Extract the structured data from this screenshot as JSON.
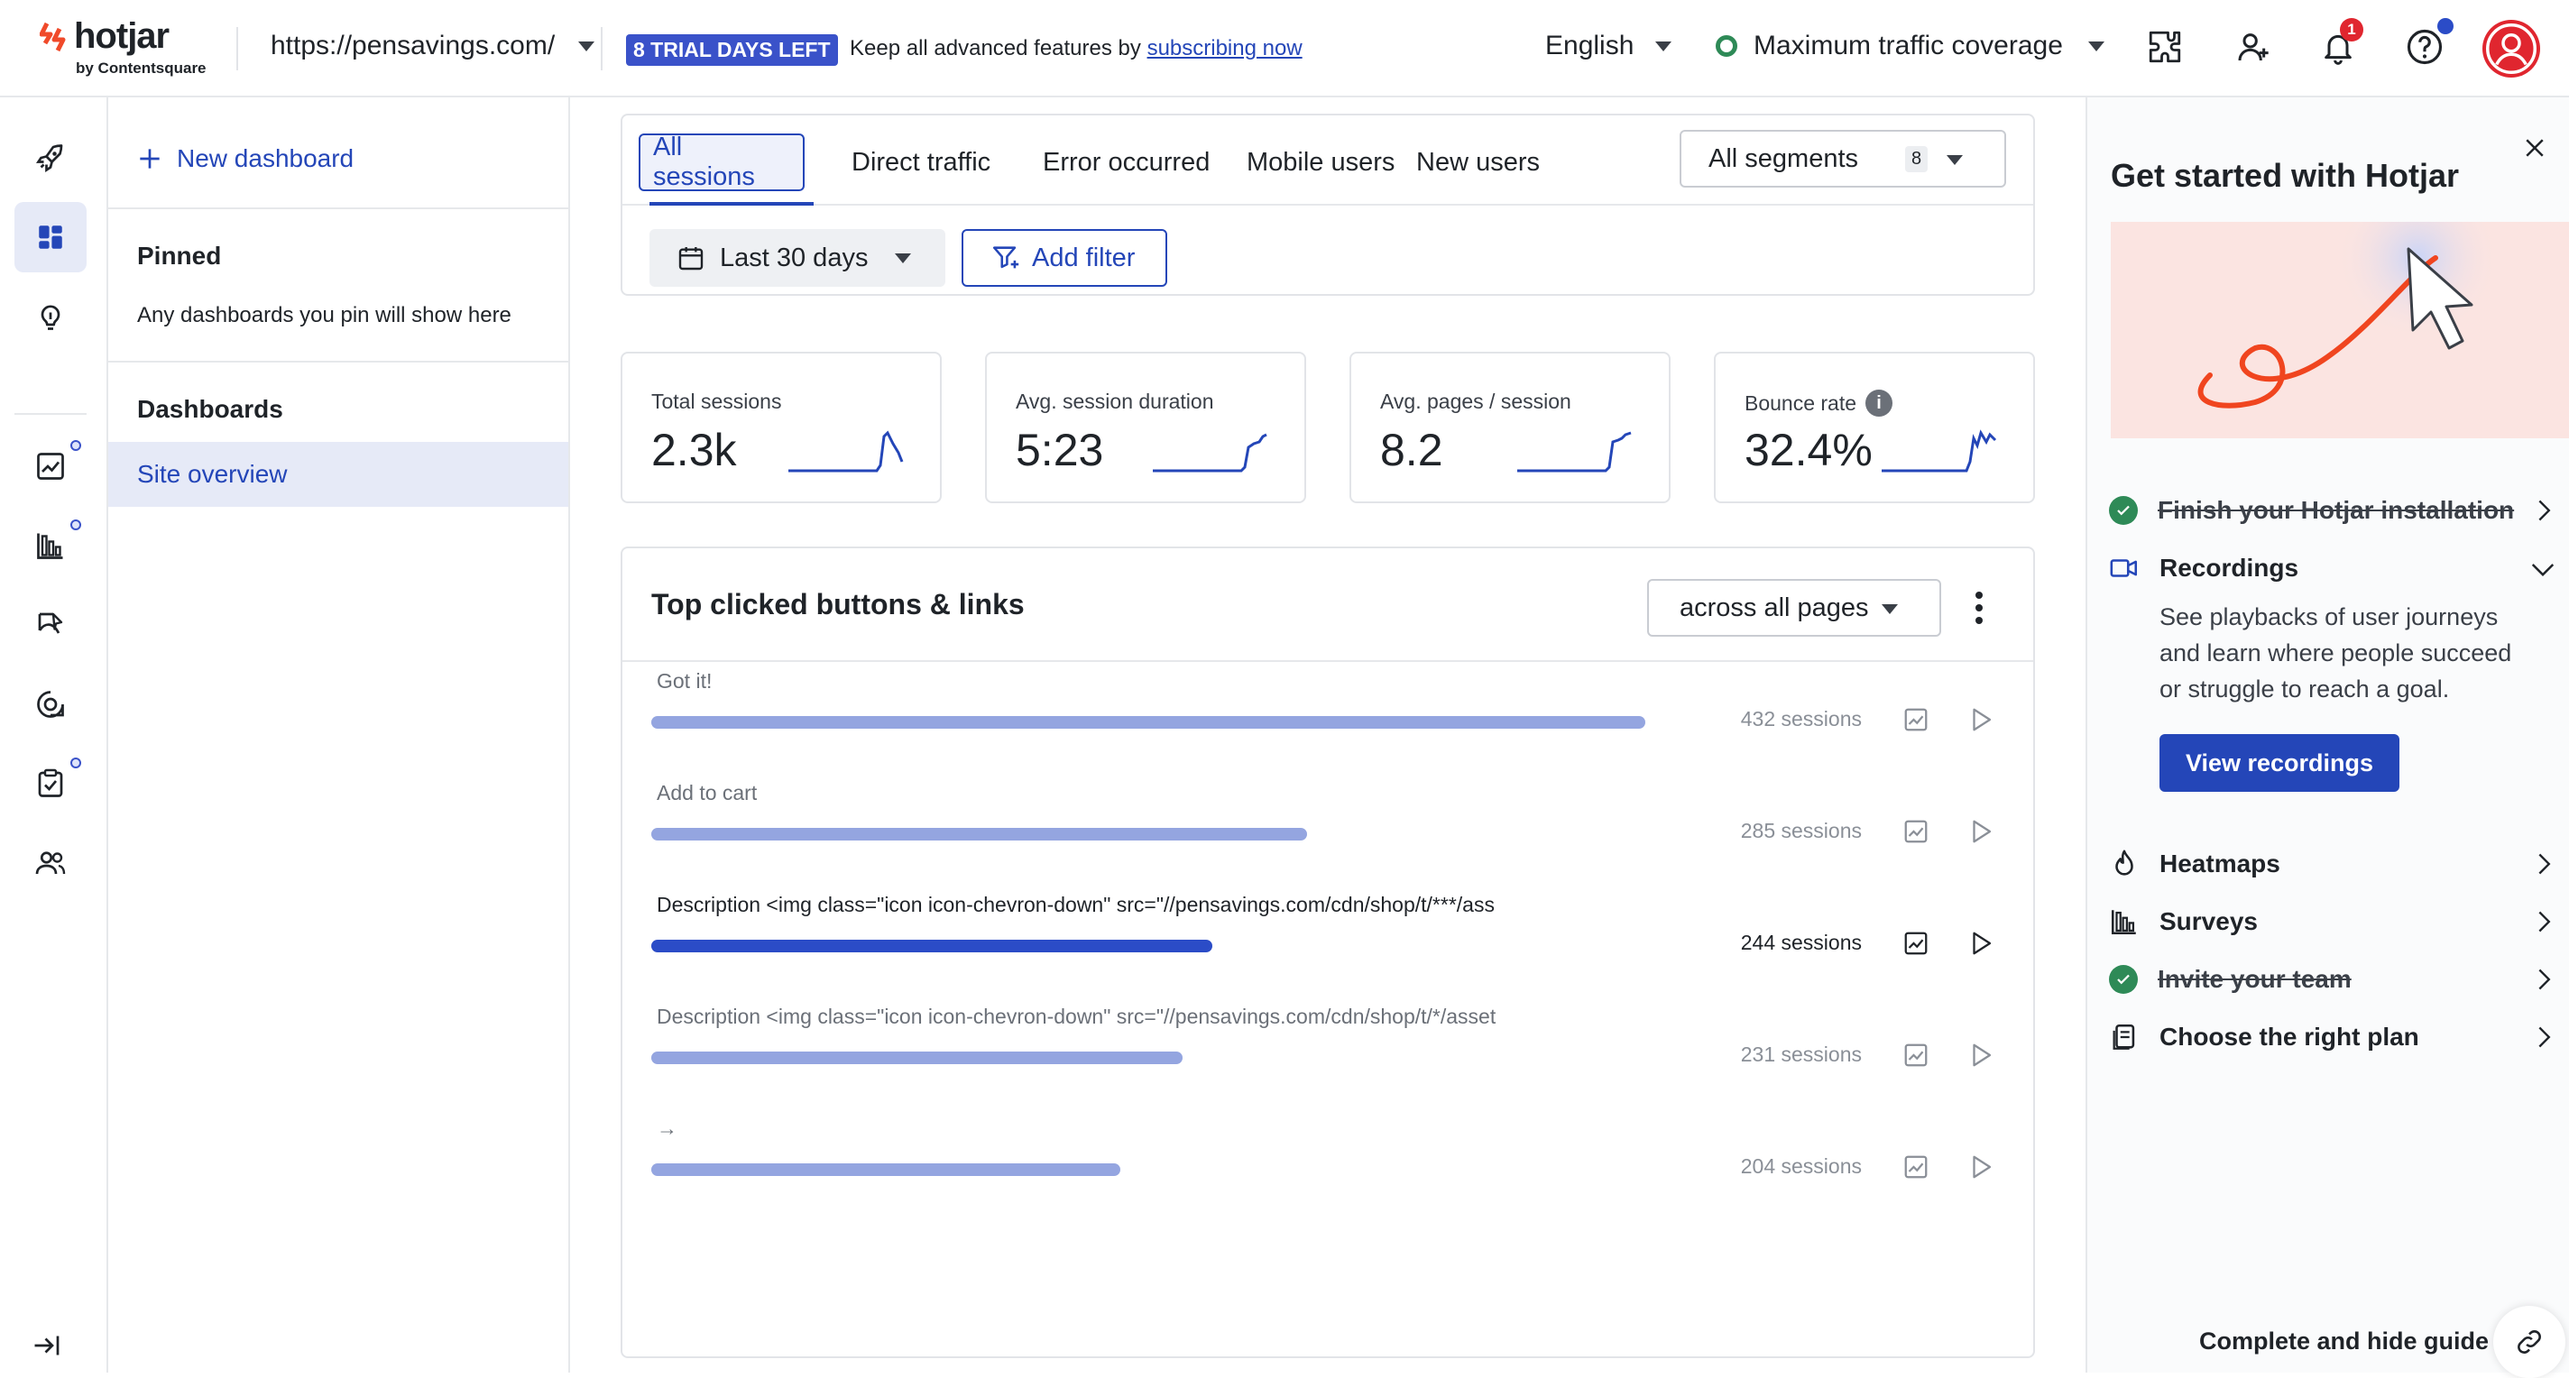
{
  "header": {
    "brand": "hotjar",
    "brand_sub": "by Contentsquare",
    "site_url": "https://pensavings.com/",
    "trial_badge": "8 TRIAL DAYS LEFT",
    "trial_text": "Keep all advanced features by",
    "trial_link": "subscribing now",
    "language": "English",
    "traffic": "Maximum traffic coverage",
    "notifications_count": "1",
    "icons": [
      "puzzle-icon",
      "add-user-icon",
      "bell-icon",
      "help-icon",
      "avatar-icon"
    ]
  },
  "rail": {
    "items": [
      "rocket-icon",
      "dashboard-icon",
      "lightbulb-icon",
      "trends-icon",
      "funnels-icon",
      "heatmap-icon",
      "feedback-icon",
      "surveys-icon",
      "interviews-icon",
      "collapse-icon"
    ],
    "active": "dashboard-icon"
  },
  "sidebar": {
    "new_dashboard": "New dashboard",
    "pinned_title": "Pinned",
    "pinned_hint": "Any dashboards you pin will show here",
    "dashboards_title": "Dashboards",
    "items": [
      {
        "label": "Site overview",
        "active": true
      }
    ]
  },
  "tabs": {
    "items": [
      "All sessions",
      "Direct traffic",
      "Error occurred",
      "Mobile users",
      "New users"
    ],
    "active": "All sessions",
    "segments_label": "All segments",
    "segments_count": "8",
    "date_range": "Last 30 days",
    "add_filter": "Add filter"
  },
  "metrics": [
    {
      "label": "Total sessions",
      "value": "2.3k",
      "info": false
    },
    {
      "label": "Avg. session duration",
      "value": "5:23",
      "info": false
    },
    {
      "label": "Avg. pages / session",
      "value": "8.2",
      "info": false
    },
    {
      "label": "Bounce rate",
      "value": "32.4%",
      "info": true
    }
  ],
  "clicks": {
    "title": "Top clicked buttons & links",
    "scope": "across all pages",
    "rows": [
      {
        "label": "Got it!",
        "sessions": 432,
        "sessions_text": "432 sessions",
        "highlight": false
      },
      {
        "label": "Add to cart",
        "sessions": 285,
        "sessions_text": "285 sessions",
        "highlight": false
      },
      {
        "label": "Description <img class=\"icon icon-chevron-down\" src=\"//pensavings.com/cdn/shop/t/***/ass",
        "sessions": 244,
        "sessions_text": "244 sessions",
        "highlight": true
      },
      {
        "label": "Description <img class=\"icon icon-chevron-down\" src=\"//pensavings.com/cdn/shop/t/*/asset",
        "sessions": 231,
        "sessions_text": "231 sessions",
        "highlight": false
      },
      {
        "label": "→",
        "sessions": 204,
        "sessions_text": "204 sessions",
        "highlight": false
      }
    ]
  },
  "guide": {
    "title": "Get started with Hotjar",
    "steps": [
      {
        "label": "Finish your Hotjar installation",
        "done": true,
        "icon": "check-icon"
      },
      {
        "label": "Recordings",
        "done": false,
        "icon": "video-icon",
        "expanded": true
      },
      {
        "label": "Heatmaps",
        "done": false,
        "icon": "flame-icon"
      },
      {
        "label": "Surveys",
        "done": false,
        "icon": "bar-chart-icon"
      },
      {
        "label": "Invite your team",
        "done": true,
        "icon": "check-icon"
      },
      {
        "label": "Choose the right plan",
        "done": false,
        "icon": "plan-icon"
      }
    ],
    "recordings_desc": "See playbacks of user journeys and learn where people succeed or struggle to reach a goal.",
    "view_button": "View recordings",
    "footer": "Complete and hide guide"
  },
  "colors": {
    "accent": "#2446b8",
    "bar": "#94a5e0",
    "bar_highlight": "#2b4cc7",
    "success": "#2e8a57",
    "alert": "#e0262f"
  }
}
